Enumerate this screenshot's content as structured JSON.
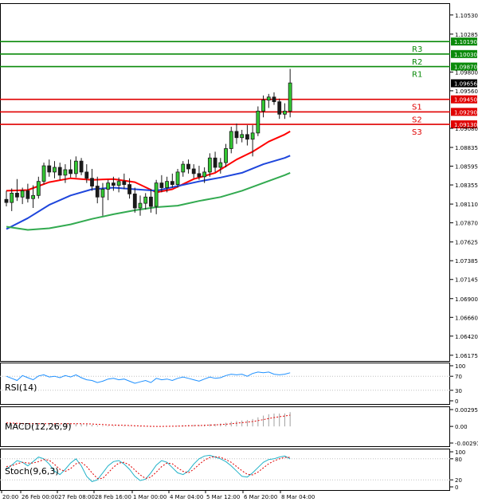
{
  "chart_data": {
    "type": "candlestick",
    "price_axis": {
      "ticks": [
        "1.10530",
        "1.10285",
        "1.09800",
        "1.09560",
        "1.09080",
        "1.08835",
        "1.08595",
        "1.08355",
        "1.08110",
        "1.07870",
        "1.07625",
        "1.07385",
        "1.07145",
        "1.06900",
        "1.06660",
        "1.06420",
        "1.06175"
      ],
      "ylim": [
        1.06102,
        1.10681
      ]
    },
    "time_axis": {
      "labels": [
        "20:00",
        "26 Feb 00:00",
        "27 Feb 08:00",
        "28 Feb 16:00",
        "1 Mar 00:00",
        "4 Mar 04:00",
        "5 Mar 12:00",
        "6 Mar 20:00",
        "8 Mar 04:00"
      ]
    },
    "candles": [
      {
        "o": 1.0817,
        "h": 1.0828,
        "l": 1.0808,
        "c": 1.0813
      },
      {
        "o": 1.0813,
        "h": 1.0831,
        "l": 1.0802,
        "c": 1.0825
      },
      {
        "o": 1.0825,
        "h": 1.0843,
        "l": 1.0815,
        "c": 1.082
      },
      {
        "o": 1.082,
        "h": 1.0832,
        "l": 1.0811,
        "c": 1.0828
      },
      {
        "o": 1.0828,
        "h": 1.0837,
        "l": 1.0813,
        "c": 1.0818
      },
      {
        "o": 1.0818,
        "h": 1.0835,
        "l": 1.0806,
        "c": 1.0822
      },
      {
        "o": 1.0822,
        "h": 1.0846,
        "l": 1.0818,
        "c": 1.084
      },
      {
        "o": 1.084,
        "h": 1.0864,
        "l": 1.0836,
        "c": 1.086
      },
      {
        "o": 1.086,
        "h": 1.0868,
        "l": 1.0846,
        "c": 1.0852
      },
      {
        "o": 1.0852,
        "h": 1.0866,
        "l": 1.0844,
        "c": 1.0858
      },
      {
        "o": 1.0858,
        "h": 1.0864,
        "l": 1.0842,
        "c": 1.0848
      },
      {
        "o": 1.0848,
        "h": 1.0862,
        "l": 1.0838,
        "c": 1.0855
      },
      {
        "o": 1.0855,
        "h": 1.0868,
        "l": 1.0845,
        "c": 1.085
      },
      {
        "o": 1.085,
        "h": 1.0872,
        "l": 1.0845,
        "c": 1.0866
      },
      {
        "o": 1.0866,
        "h": 1.087,
        "l": 1.0848,
        "c": 1.0852
      },
      {
        "o": 1.0852,
        "h": 1.0862,
        "l": 1.0838,
        "c": 1.0844
      },
      {
        "o": 1.0844,
        "h": 1.0856,
        "l": 1.0828,
        "c": 1.0834
      },
      {
        "o": 1.0834,
        "h": 1.0846,
        "l": 1.0812,
        "c": 1.082
      },
      {
        "o": 1.082,
        "h": 1.0838,
        "l": 1.0796,
        "c": 1.083
      },
      {
        "o": 1.083,
        "h": 1.0842,
        "l": 1.0816,
        "c": 1.0838
      },
      {
        "o": 1.0838,
        "h": 1.0846,
        "l": 1.0828,
        "c": 1.0835
      },
      {
        "o": 1.0835,
        "h": 1.0845,
        "l": 1.0826,
        "c": 1.084
      },
      {
        "o": 1.084,
        "h": 1.085,
        "l": 1.083,
        "c": 1.0836
      },
      {
        "o": 1.0836,
        "h": 1.0844,
        "l": 1.0818,
        "c": 1.0824
      },
      {
        "o": 1.0824,
        "h": 1.0832,
        "l": 1.08,
        "c": 1.0806
      },
      {
        "o": 1.0806,
        "h": 1.0822,
        "l": 1.0796,
        "c": 1.0812
      },
      {
        "o": 1.0812,
        "h": 1.0825,
        "l": 1.0804,
        "c": 1.082
      },
      {
        "o": 1.082,
        "h": 1.083,
        "l": 1.08,
        "c": 1.0808
      },
      {
        "o": 1.0808,
        "h": 1.0842,
        "l": 1.0798,
        "c": 1.0838
      },
      {
        "o": 1.0838,
        "h": 1.0848,
        "l": 1.0826,
        "c": 1.0832
      },
      {
        "o": 1.0832,
        "h": 1.0846,
        "l": 1.0826,
        "c": 1.084
      },
      {
        "o": 1.084,
        "h": 1.085,
        "l": 1.0832,
        "c": 1.0836
      },
      {
        "o": 1.0836,
        "h": 1.0856,
        "l": 1.0832,
        "c": 1.0852
      },
      {
        "o": 1.0852,
        "h": 1.0866,
        "l": 1.0846,
        "c": 1.0862
      },
      {
        "o": 1.0862,
        "h": 1.0868,
        "l": 1.085,
        "c": 1.0856
      },
      {
        "o": 1.0856,
        "h": 1.0862,
        "l": 1.0844,
        "c": 1.085
      },
      {
        "o": 1.085,
        "h": 1.086,
        "l": 1.0842,
        "c": 1.0846
      },
      {
        "o": 1.0846,
        "h": 1.0858,
        "l": 1.0838,
        "c": 1.0852
      },
      {
        "o": 1.0852,
        "h": 1.0876,
        "l": 1.0846,
        "c": 1.087
      },
      {
        "o": 1.087,
        "h": 1.0878,
        "l": 1.0852,
        "c": 1.0858
      },
      {
        "o": 1.0858,
        "h": 1.087,
        "l": 1.085,
        "c": 1.0864
      },
      {
        "o": 1.0864,
        "h": 1.0888,
        "l": 1.0858,
        "c": 1.0882
      },
      {
        "o": 1.0882,
        "h": 1.091,
        "l": 1.0876,
        "c": 1.0904
      },
      {
        "o": 1.0904,
        "h": 1.0914,
        "l": 1.0888,
        "c": 1.0896
      },
      {
        "o": 1.0896,
        "h": 1.0906,
        "l": 1.089,
        "c": 1.09
      },
      {
        "o": 1.09,
        "h": 1.0912,
        "l": 1.0886,
        "c": 1.0894
      },
      {
        "o": 1.0894,
        "h": 1.0912,
        "l": 1.0872,
        "c": 1.0902
      },
      {
        "o": 1.0902,
        "h": 1.0936,
        "l": 1.0898,
        "c": 1.093
      },
      {
        "o": 1.093,
        "h": 1.095,
        "l": 1.0922,
        "c": 1.0944
      },
      {
        "o": 1.0944,
        "h": 1.0952,
        "l": 1.0934,
        "c": 1.0948
      },
      {
        "o": 1.0948,
        "h": 1.0954,
        "l": 1.0938,
        "c": 1.0942
      },
      {
        "o": 1.0942,
        "h": 1.0946,
        "l": 1.092,
        "c": 1.0926
      },
      {
        "o": 1.0926,
        "h": 1.094,
        "l": 1.092,
        "c": 1.093
      },
      {
        "o": 1.093,
        "h": 1.0984,
        "l": 1.0922,
        "c": 1.0966
      }
    ],
    "moving_averages": [
      {
        "color": "#ff0000",
        "points": [
          [
            0,
            1.0828
          ],
          [
            4,
            1.0829
          ],
          [
            8,
            1.0839
          ],
          [
            12,
            1.0844
          ],
          [
            16,
            1.0842
          ],
          [
            20,
            1.0843
          ],
          [
            24,
            1.0839
          ],
          [
            28,
            1.0826
          ],
          [
            31,
            1.083
          ],
          [
            35,
            1.0843
          ],
          [
            39,
            1.0851
          ],
          [
            43,
            1.0868
          ],
          [
            46,
            1.0878
          ],
          [
            49,
            1.0891
          ],
          [
            52,
            1.09
          ],
          [
            53,
            1.0904
          ]
        ]
      },
      {
        "color": "#1e46dc",
        "points": [
          [
            0,
            1.0779
          ],
          [
            4,
            1.0793
          ],
          [
            8,
            1.081
          ],
          [
            12,
            1.0822
          ],
          [
            16,
            1.083
          ],
          [
            20,
            1.0832
          ],
          [
            24,
            1.083
          ],
          [
            28,
            1.0828
          ],
          [
            32,
            1.0834
          ],
          [
            36,
            1.084
          ],
          [
            40,
            1.0845
          ],
          [
            44,
            1.0851
          ],
          [
            48,
            1.0862
          ],
          [
            52,
            1.087
          ],
          [
            53,
            1.0873
          ]
        ]
      },
      {
        "color": "#32aa50",
        "points": [
          [
            0,
            1.0782
          ],
          [
            4,
            1.0778
          ],
          [
            8,
            1.078
          ],
          [
            12,
            1.0785
          ],
          [
            16,
            1.0792
          ],
          [
            20,
            1.0798
          ],
          [
            24,
            1.0803
          ],
          [
            28,
            1.0807
          ],
          [
            32,
            1.0809
          ],
          [
            36,
            1.0815
          ],
          [
            40,
            1.082
          ],
          [
            44,
            1.0828
          ],
          [
            48,
            1.0838
          ],
          [
            52,
            1.0848
          ],
          [
            53,
            1.0851
          ]
        ]
      }
    ],
    "levels": [
      {
        "name": "R3",
        "value": 1.1019,
        "label": "1.10190",
        "color": "#0a8a0a"
      },
      {
        "name": "R2",
        "value": 1.1003,
        "label": "1.10030",
        "color": "#0a8a0a"
      },
      {
        "name": "R1",
        "value": 1.0987,
        "label": "1.09870",
        "color": "#0a8a0a"
      },
      {
        "name": "S1",
        "value": 1.0945,
        "label": "1.09450",
        "color": "#e00000"
      },
      {
        "name": "S2",
        "value": 1.0929,
        "label": "1.09290",
        "color": "#e00000"
      },
      {
        "name": "S3",
        "value": 1.0913,
        "label": "1.09130",
        "color": "#e00000"
      }
    ],
    "current_price": {
      "value": 1.09656,
      "label": "1.09656"
    },
    "rsi": {
      "label": "RSI(14)",
      "ticks": [
        "100",
        "70",
        "30",
        "0"
      ],
      "levels": [
        70,
        30
      ],
      "ylim": [
        0,
        100
      ],
      "values": [
        70,
        64,
        58,
        72,
        66,
        60,
        71,
        74,
        68,
        70,
        66,
        72,
        68,
        74,
        66,
        60,
        58,
        52,
        56,
        62,
        64,
        60,
        62,
        56,
        50,
        54,
        58,
        52,
        64,
        60,
        62,
        58,
        64,
        68,
        64,
        60,
        56,
        62,
        68,
        64,
        66,
        72,
        76,
        74,
        76,
        70,
        78,
        82,
        80,
        82,
        76,
        74,
        76,
        80
      ]
    },
    "macd": {
      "label": "MACD(12,26,9)",
      "ticks": [
        "0.002955",
        "0.00",
        "-0.002917"
      ],
      "ylim": [
        -0.002917,
        0.002955
      ],
      "histogram": [
        0.00035,
        0.0003,
        0.00028,
        0.0003,
        0.00028,
        0.00026,
        0.0003,
        0.00045,
        0.00048,
        0.0005,
        0.00046,
        0.00048,
        0.00045,
        0.0005,
        0.00044,
        0.00036,
        0.00028,
        0.00018,
        0.00012,
        0.0001,
        0.00012,
        0.00012,
        0.00012,
        6e-05,
        -4e-05,
        -6e-05,
        -4e-05,
        -8e-05,
        0.0,
        2e-05,
        6e-05,
        6e-05,
        0.00012,
        0.0002,
        0.00024,
        0.00026,
        0.00026,
        0.0003,
        0.0004,
        0.00044,
        0.0005,
        0.00064,
        0.00082,
        0.00094,
        0.00104,
        0.00112,
        0.0013,
        0.0016,
        0.0019,
        0.00214,
        0.00226,
        0.00226,
        0.00228,
        0.0025
      ],
      "signal": [
        0.0006,
        0.00058,
        0.00055,
        0.00052,
        0.0005,
        0.00048,
        0.00046,
        0.00046,
        0.00047,
        0.00048,
        0.00048,
        0.00048,
        0.00047,
        0.00048,
        0.00047,
        0.00045,
        0.00042,
        0.00037,
        0.00032,
        0.00027,
        0.00024,
        0.00021,
        0.00019,
        0.00016,
        0.00012,
        8e-05,
        5e-05,
        2e-05,
        1e-05,
        1e-05,
        2e-05,
        3e-05,
        5e-05,
        8e-05,
        0.00011,
        0.00014,
        0.00016,
        0.00019,
        0.00023,
        0.00027,
        0.00032,
        0.00038,
        0.00047,
        0.00056,
        0.00066,
        0.00075,
        0.00086,
        0.00101,
        0.00119,
        0.00138,
        0.00155,
        0.0017,
        0.00182,
        0.00198
      ]
    },
    "stochastic": {
      "label": "Stoch(9,6,3)",
      "ticks": [
        "100",
        "80",
        "20",
        "0"
      ],
      "levels": [
        80,
        20
      ],
      "ylim": [
        0,
        100
      ],
      "k": [
        50,
        62,
        75,
        70,
        60,
        72,
        85,
        80,
        65,
        45,
        35,
        50,
        68,
        80,
        60,
        30,
        15,
        20,
        40,
        60,
        72,
        75,
        65,
        50,
        30,
        18,
        22,
        40,
        62,
        75,
        70,
        55,
        40,
        35,
        45,
        65,
        80,
        88,
        90,
        85,
        80,
        72,
        60,
        45,
        30,
        28,
        40,
        55,
        70,
        78,
        80,
        85,
        88,
        80
      ],
      "d": [
        58,
        60,
        66,
        70,
        68,
        68,
        72,
        78,
        76,
        64,
        50,
        44,
        52,
        66,
        70,
        58,
        40,
        24,
        24,
        40,
        56,
        68,
        70,
        62,
        48,
        34,
        24,
        28,
        42,
        58,
        68,
        66,
        54,
        44,
        40,
        50,
        64,
        76,
        84,
        86,
        84,
        78,
        70,
        58,
        46,
        36,
        34,
        42,
        54,
        66,
        74,
        80,
        84,
        84
      ]
    }
  }
}
